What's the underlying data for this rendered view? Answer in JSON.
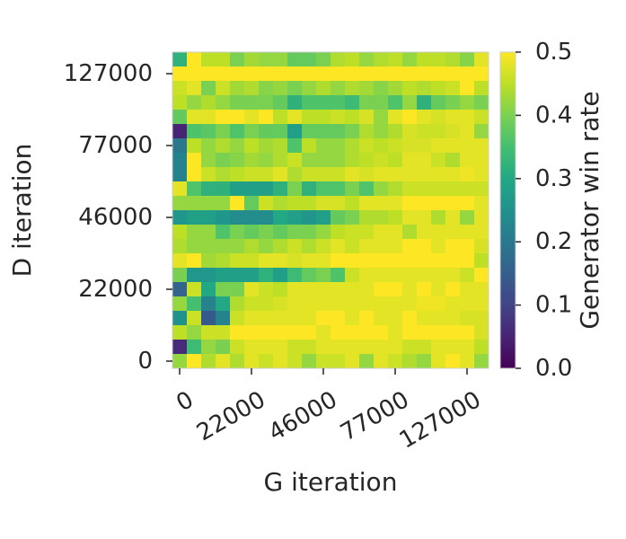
{
  "chart_data": {
    "type": "heatmap",
    "title": "",
    "xlabel": "G iteration",
    "ylabel": "D iteration",
    "colorbar_label": "Generator win rate",
    "colormap": "viridis",
    "value_range": [
      0.0,
      0.5
    ],
    "colorbar_ticks": [
      "0.0",
      "0.1",
      "0.2",
      "0.3",
      "0.4",
      "0.5"
    ],
    "x_tick_labels": [
      "0",
      "22000",
      "46000",
      "77000",
      "127000"
    ],
    "y_tick_labels": [
      "0",
      "22000",
      "46000",
      "77000",
      "127000"
    ],
    "grid": false,
    "row_order": "top-to-bottom (highest D iteration first)",
    "values": [
      [
        0.32,
        0.5,
        0.45,
        0.45,
        0.4,
        0.43,
        0.42,
        0.42,
        0.38,
        0.38,
        0.4,
        0.44,
        0.45,
        0.42,
        0.44,
        0.45,
        0.42,
        0.45,
        0.45,
        0.44,
        0.41,
        0.48
      ],
      [
        0.5,
        0.5,
        0.5,
        0.5,
        0.5,
        0.5,
        0.5,
        0.5,
        0.5,
        0.5,
        0.5,
        0.5,
        0.5,
        0.5,
        0.5,
        0.5,
        0.5,
        0.5,
        0.5,
        0.5,
        0.5,
        0.5
      ],
      [
        0.46,
        0.48,
        0.4,
        0.46,
        0.43,
        0.44,
        0.41,
        0.42,
        0.4,
        0.42,
        0.44,
        0.42,
        0.44,
        0.43,
        0.41,
        0.43,
        0.45,
        0.44,
        0.45,
        0.46,
        0.5,
        0.45
      ],
      [
        0.45,
        0.42,
        0.44,
        0.42,
        0.4,
        0.4,
        0.4,
        0.38,
        0.32,
        0.36,
        0.36,
        0.36,
        0.34,
        0.4,
        0.4,
        0.36,
        0.42,
        0.32,
        0.38,
        0.4,
        0.42,
        0.4
      ],
      [
        0.38,
        0.48,
        0.48,
        0.5,
        0.5,
        0.48,
        0.5,
        0.45,
        0.48,
        0.45,
        0.45,
        0.46,
        0.45,
        0.47,
        0.42,
        0.48,
        0.5,
        0.48,
        0.47,
        0.48,
        0.48,
        0.46
      ],
      [
        0.05,
        0.36,
        0.37,
        0.4,
        0.36,
        0.4,
        0.38,
        0.38,
        0.28,
        0.38,
        0.38,
        0.38,
        0.4,
        0.44,
        0.42,
        0.44,
        0.47,
        0.46,
        0.46,
        0.47,
        0.48,
        0.42
      ],
      [
        0.2,
        0.45,
        0.42,
        0.44,
        0.42,
        0.45,
        0.43,
        0.44,
        0.36,
        0.45,
        0.42,
        0.42,
        0.44,
        0.46,
        0.45,
        0.46,
        0.47,
        0.47,
        0.48,
        0.48,
        0.48,
        0.48
      ],
      [
        0.22,
        0.5,
        0.42,
        0.4,
        0.41,
        0.43,
        0.42,
        0.44,
        0.46,
        0.42,
        0.42,
        0.42,
        0.44,
        0.45,
        0.46,
        0.45,
        0.48,
        0.48,
        0.46,
        0.44,
        0.48,
        0.48
      ],
      [
        0.22,
        0.5,
        0.46,
        0.44,
        0.45,
        0.46,
        0.46,
        0.48,
        0.44,
        0.46,
        0.46,
        0.46,
        0.48,
        0.47,
        0.48,
        0.48,
        0.48,
        0.48,
        0.48,
        0.48,
        0.49,
        0.48
      ],
      [
        0.48,
        0.36,
        0.32,
        0.32,
        0.28,
        0.28,
        0.28,
        0.32,
        0.4,
        0.32,
        0.36,
        0.36,
        0.4,
        0.36,
        0.42,
        0.44,
        0.46,
        0.46,
        0.46,
        0.46,
        0.46,
        0.46
      ],
      [
        0.42,
        0.42,
        0.42,
        0.42,
        0.5,
        0.38,
        0.46,
        0.44,
        0.45,
        0.45,
        0.47,
        0.47,
        0.45,
        0.48,
        0.48,
        0.48,
        0.5,
        0.5,
        0.5,
        0.5,
        0.5,
        0.48
      ],
      [
        0.26,
        0.28,
        0.28,
        0.26,
        0.24,
        0.24,
        0.24,
        0.3,
        0.28,
        0.26,
        0.28,
        0.38,
        0.4,
        0.44,
        0.44,
        0.45,
        0.48,
        0.48,
        0.44,
        0.48,
        0.42,
        0.48
      ],
      [
        0.45,
        0.42,
        0.42,
        0.36,
        0.4,
        0.38,
        0.4,
        0.38,
        0.4,
        0.4,
        0.42,
        0.45,
        0.46,
        0.46,
        0.48,
        0.48,
        0.44,
        0.48,
        0.48,
        0.48,
        0.48,
        0.48
      ],
      [
        0.44,
        0.42,
        0.42,
        0.42,
        0.42,
        0.44,
        0.42,
        0.44,
        0.46,
        0.44,
        0.46,
        0.48,
        0.46,
        0.48,
        0.48,
        0.48,
        0.5,
        0.5,
        0.48,
        0.5,
        0.5,
        0.47
      ],
      [
        0.48,
        0.5,
        0.43,
        0.44,
        0.46,
        0.46,
        0.48,
        0.48,
        0.47,
        0.48,
        0.48,
        0.5,
        0.5,
        0.5,
        0.5,
        0.5,
        0.5,
        0.5,
        0.5,
        0.5,
        0.5,
        0.45
      ],
      [
        0.4,
        0.26,
        0.26,
        0.28,
        0.28,
        0.28,
        0.32,
        0.28,
        0.34,
        0.38,
        0.4,
        0.36,
        0.46,
        0.48,
        0.48,
        0.48,
        0.48,
        0.48,
        0.48,
        0.48,
        0.46,
        0.5
      ],
      [
        0.16,
        0.46,
        0.3,
        0.4,
        0.4,
        0.48,
        0.46,
        0.45,
        0.48,
        0.48,
        0.48,
        0.48,
        0.48,
        0.48,
        0.5,
        0.5,
        0.48,
        0.5,
        0.48,
        0.5,
        0.48,
        0.48
      ],
      [
        0.42,
        0.35,
        0.22,
        0.3,
        0.44,
        0.46,
        0.46,
        0.47,
        0.48,
        0.48,
        0.48,
        0.48,
        0.48,
        0.48,
        0.48,
        0.48,
        0.48,
        0.49,
        0.49,
        0.48,
        0.48,
        0.48
      ],
      [
        0.25,
        0.46,
        0.14,
        0.22,
        0.46,
        0.48,
        0.48,
        0.48,
        0.48,
        0.48,
        0.5,
        0.5,
        0.48,
        0.5,
        0.48,
        0.48,
        0.5,
        0.48,
        0.48,
        0.48,
        0.47,
        0.47
      ],
      [
        0.45,
        0.42,
        0.46,
        0.46,
        0.5,
        0.5,
        0.5,
        0.5,
        0.5,
        0.5,
        0.48,
        0.5,
        0.5,
        0.5,
        0.5,
        0.48,
        0.5,
        0.5,
        0.5,
        0.5,
        0.5,
        0.47
      ],
      [
        0.06,
        0.34,
        0.42,
        0.4,
        0.46,
        0.48,
        0.48,
        0.48,
        0.46,
        0.46,
        0.48,
        0.48,
        0.48,
        0.48,
        0.48,
        0.48,
        0.46,
        0.46,
        0.48,
        0.48,
        0.48,
        0.45
      ],
      [
        0.42,
        0.5,
        0.44,
        0.48,
        0.44,
        0.48,
        0.46,
        0.48,
        0.46,
        0.42,
        0.46,
        0.46,
        0.48,
        0.42,
        0.48,
        0.46,
        0.44,
        0.42,
        0.48,
        0.5,
        0.48,
        0.42
      ]
    ]
  }
}
